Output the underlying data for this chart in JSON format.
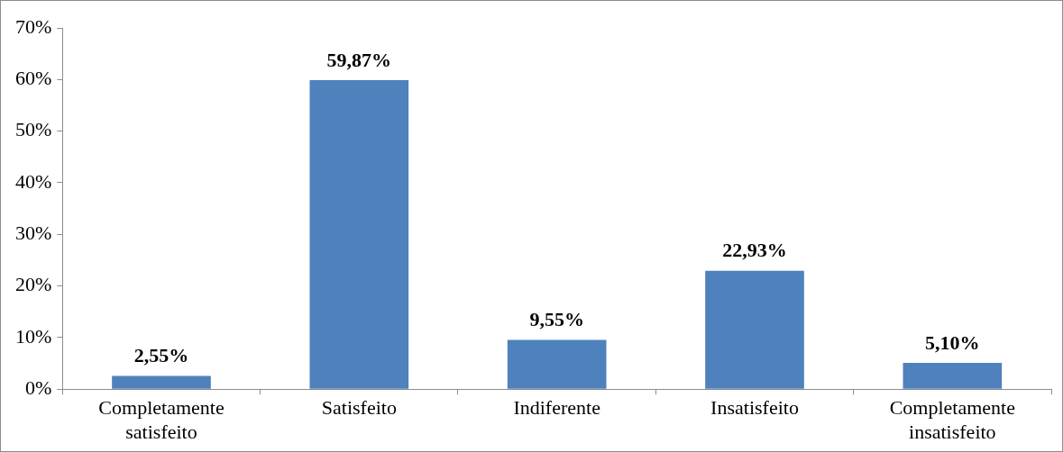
{
  "chart_data": {
    "type": "bar",
    "categories": [
      "Completamente satisfeito",
      "Satisfeito",
      "Indiferente",
      "Insatisfeito",
      "Completamente insatisfeito"
    ],
    "values": [
      2.55,
      59.87,
      9.55,
      22.93,
      5.1
    ],
    "value_labels": [
      "2,55%",
      "59,87%",
      "9,55%",
      "22,93%",
      "5,10%"
    ],
    "color": "#4f81bd",
    "ylim": [
      0,
      70
    ],
    "yticks": [
      {
        "value": 0,
        "label": "0%"
      },
      {
        "value": 10,
        "label": "10%"
      },
      {
        "value": 20,
        "label": "20%"
      },
      {
        "value": 30,
        "label": "30%"
      },
      {
        "value": 40,
        "label": "40%"
      },
      {
        "value": 50,
        "label": "50%"
      },
      {
        "value": 60,
        "label": "60%"
      },
      {
        "value": 70,
        "label": "70%"
      }
    ],
    "grid": false,
    "legend": false
  }
}
